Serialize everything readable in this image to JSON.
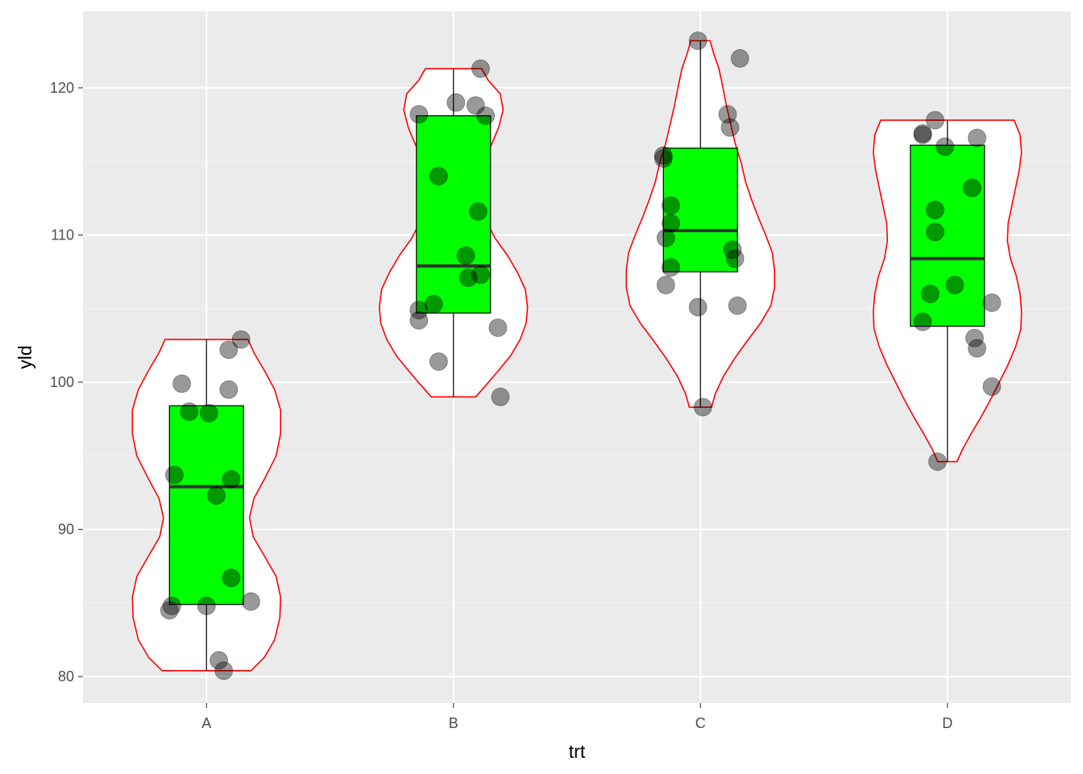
{
  "chart_data": {
    "type": "violin+boxplot+jitter",
    "title": "",
    "xlabel": "trt",
    "ylabel": "yld",
    "ylim": [
      78.2,
      125.2
    ],
    "y_ticks": [
      80,
      90,
      100,
      110,
      120
    ],
    "y_tick_labels": [
      "80",
      "90",
      "100",
      "110",
      "120"
    ],
    "categories": [
      "A",
      "B",
      "C",
      "D"
    ],
    "grid": true,
    "legend": "none",
    "colors": {
      "panel": "#EBEBEB",
      "grid_major": "#FFFFFF",
      "grid_minor": "#F5F5F5",
      "violin_fill": "#FFFFFF",
      "violin_outline": "#FF0000",
      "box_fill": "#00FF00",
      "box_outline": "#000000",
      "median": "#333333",
      "point": "#000000",
      "point_alpha": 0.4,
      "tick_text": "#4D4D4D",
      "axis_title": "#000000"
    },
    "groups": [
      {
        "category": "A",
        "box": {
          "lower_whisker": 80.4,
          "q1": 84.9,
          "median": 92.9,
          "q3": 98.4,
          "upper_whisker": 102.9
        },
        "violin_profile": [
          [
            80.4,
            0.6
          ],
          [
            81.3,
            0.78
          ],
          [
            82.5,
            0.92
          ],
          [
            84.0,
            0.99
          ],
          [
            85.4,
            1.0
          ],
          [
            86.8,
            0.94
          ],
          [
            88.2,
            0.78
          ],
          [
            89.5,
            0.63
          ],
          [
            90.8,
            0.58
          ],
          [
            92.1,
            0.64
          ],
          [
            93.5,
            0.79
          ],
          [
            95.0,
            0.94
          ],
          [
            96.5,
            1.0
          ],
          [
            98.1,
            1.0
          ],
          [
            99.5,
            0.92
          ],
          [
            100.8,
            0.78
          ],
          [
            102.0,
            0.64
          ],
          [
            102.9,
            0.56
          ]
        ],
        "points": [
          {
            "x": -0.15,
            "y": 84.5
          },
          {
            "x": -0.14,
            "y": 84.8
          },
          {
            "x": 0.0,
            "y": 84.8
          },
          {
            "x": 0.18,
            "y": 85.1
          },
          {
            "x": 0.1,
            "y": 86.7
          },
          {
            "x": 0.05,
            "y": 81.1
          },
          {
            "x": 0.07,
            "y": 80.4
          },
          {
            "x": -0.13,
            "y": 93.7
          },
          {
            "x": 0.1,
            "y": 93.4
          },
          {
            "x": 0.04,
            "y": 92.3
          },
          {
            "x": -0.07,
            "y": 98.0
          },
          {
            "x": 0.01,
            "y": 97.9
          },
          {
            "x": -0.1,
            "y": 99.9
          },
          {
            "x": 0.09,
            "y": 99.5
          },
          {
            "x": 0.09,
            "y": 102.2
          },
          {
            "x": 0.14,
            "y": 102.9
          }
        ]
      },
      {
        "category": "B",
        "box": {
          "lower_whisker": 99.0,
          "q1": 104.7,
          "median": 107.9,
          "q3": 118.1,
          "upper_whisker": 121.3
        },
        "violin_profile": [
          [
            99.0,
            0.3
          ],
          [
            99.8,
            0.44
          ],
          [
            100.8,
            0.61
          ],
          [
            101.8,
            0.77
          ],
          [
            102.9,
            0.9
          ],
          [
            104.0,
            0.98
          ],
          [
            105.1,
            1.0
          ],
          [
            106.3,
            0.97
          ],
          [
            107.4,
            0.87
          ],
          [
            108.6,
            0.73
          ],
          [
            109.8,
            0.56
          ],
          [
            111.1,
            0.43
          ],
          [
            112.3,
            0.36
          ],
          [
            113.6,
            0.36
          ],
          [
            114.9,
            0.41
          ],
          [
            116.1,
            0.51
          ],
          [
            117.3,
            0.61
          ],
          [
            118.5,
            0.67
          ],
          [
            119.6,
            0.63
          ],
          [
            120.5,
            0.47
          ],
          [
            121.3,
            0.38
          ]
        ],
        "points": [
          {
            "x": -0.14,
            "y": 104.9
          },
          {
            "x": -0.14,
            "y": 104.2
          },
          {
            "x": -0.08,
            "y": 105.3
          },
          {
            "x": -0.06,
            "y": 101.4
          },
          {
            "x": 0.18,
            "y": 103.7
          },
          {
            "x": 0.19,
            "y": 99.0
          },
          {
            "x": 0.06,
            "y": 107.1
          },
          {
            "x": 0.11,
            "y": 107.3
          },
          {
            "x": 0.05,
            "y": 108.6
          },
          {
            "x": 0.1,
            "y": 111.6
          },
          {
            "x": -0.06,
            "y": 114.0
          },
          {
            "x": -0.14,
            "y": 118.2
          },
          {
            "x": 0.13,
            "y": 118.1
          },
          {
            "x": 0.09,
            "y": 118.8
          },
          {
            "x": 0.01,
            "y": 119.0
          },
          {
            "x": 0.11,
            "y": 121.3
          }
        ]
      },
      {
        "category": "C",
        "box": {
          "lower_whisker": 98.3,
          "q1": 107.5,
          "median": 110.3,
          "q3": 115.9,
          "upper_whisker": 123.2
        },
        "violin_profile": [
          [
            98.3,
            0.15
          ],
          [
            99.2,
            0.2
          ],
          [
            100.4,
            0.31
          ],
          [
            101.6,
            0.46
          ],
          [
            102.8,
            0.63
          ],
          [
            104.0,
            0.81
          ],
          [
            105.2,
            0.95
          ],
          [
            106.4,
            1.0
          ],
          [
            107.6,
            1.0
          ],
          [
            108.8,
            0.97
          ],
          [
            110.0,
            0.88
          ],
          [
            111.2,
            0.78
          ],
          [
            112.4,
            0.69
          ],
          [
            113.6,
            0.61
          ],
          [
            114.9,
            0.55
          ],
          [
            116.2,
            0.47
          ],
          [
            117.5,
            0.41
          ],
          [
            118.8,
            0.35
          ],
          [
            120.1,
            0.3
          ],
          [
            121.3,
            0.25
          ],
          [
            122.3,
            0.18
          ],
          [
            123.2,
            0.13
          ]
        ],
        "points": [
          {
            "x": -0.14,
            "y": 106.6
          },
          {
            "x": -0.12,
            "y": 107.8
          },
          {
            "x": -0.14,
            "y": 109.8
          },
          {
            "x": -0.12,
            "y": 110.8
          },
          {
            "x": -0.12,
            "y": 112.0
          },
          {
            "x": -0.15,
            "y": 115.2
          },
          {
            "x": -0.15,
            "y": 115.4
          },
          {
            "x": -0.01,
            "y": 105.1
          },
          {
            "x": 0.15,
            "y": 105.2
          },
          {
            "x": 0.13,
            "y": 109.0
          },
          {
            "x": 0.14,
            "y": 108.4
          },
          {
            "x": 0.12,
            "y": 117.3
          },
          {
            "x": 0.11,
            "y": 118.2
          },
          {
            "x": 0.16,
            "y": 122.0
          },
          {
            "x": -0.01,
            "y": 123.2
          },
          {
            "x": 0.01,
            "y": 98.3
          }
        ]
      },
      {
        "category": "D",
        "box": {
          "lower_whisker": 94.6,
          "q1": 103.8,
          "median": 108.4,
          "q3": 116.1,
          "upper_whisker": 117.8
        },
        "violin_profile": [
          [
            94.6,
            0.13
          ],
          [
            95.4,
            0.2
          ],
          [
            96.5,
            0.32
          ],
          [
            97.6,
            0.45
          ],
          [
            98.8,
            0.58
          ],
          [
            100.0,
            0.7
          ],
          [
            101.2,
            0.82
          ],
          [
            102.4,
            0.92
          ],
          [
            103.6,
            0.99
          ],
          [
            104.8,
            1.0
          ],
          [
            106.0,
            0.98
          ],
          [
            107.2,
            0.93
          ],
          [
            108.4,
            0.85
          ],
          [
            109.6,
            0.81
          ],
          [
            110.8,
            0.82
          ],
          [
            112.0,
            0.87
          ],
          [
            113.2,
            0.92
          ],
          [
            114.4,
            0.97
          ],
          [
            115.6,
            1.0
          ],
          [
            116.8,
            0.98
          ],
          [
            117.8,
            0.9
          ]
        ],
        "points": [
          {
            "x": -0.1,
            "y": 104.1
          },
          {
            "x": -0.07,
            "y": 106.0
          },
          {
            "x": 0.03,
            "y": 106.6
          },
          {
            "x": 0.18,
            "y": 105.4
          },
          {
            "x": 0.11,
            "y": 103.0
          },
          {
            "x": 0.12,
            "y": 102.3
          },
          {
            "x": 0.18,
            "y": 99.7
          },
          {
            "x": -0.04,
            "y": 94.6
          },
          {
            "x": -0.05,
            "y": 110.2
          },
          {
            "x": -0.05,
            "y": 111.7
          },
          {
            "x": 0.1,
            "y": 113.2
          },
          {
            "x": -0.01,
            "y": 116.0
          },
          {
            "x": 0.12,
            "y": 116.6
          },
          {
            "x": -0.1,
            "y": 116.9
          },
          {
            "x": -0.1,
            "y": 116.8
          },
          {
            "x": -0.05,
            "y": 117.8
          }
        ]
      }
    ]
  }
}
